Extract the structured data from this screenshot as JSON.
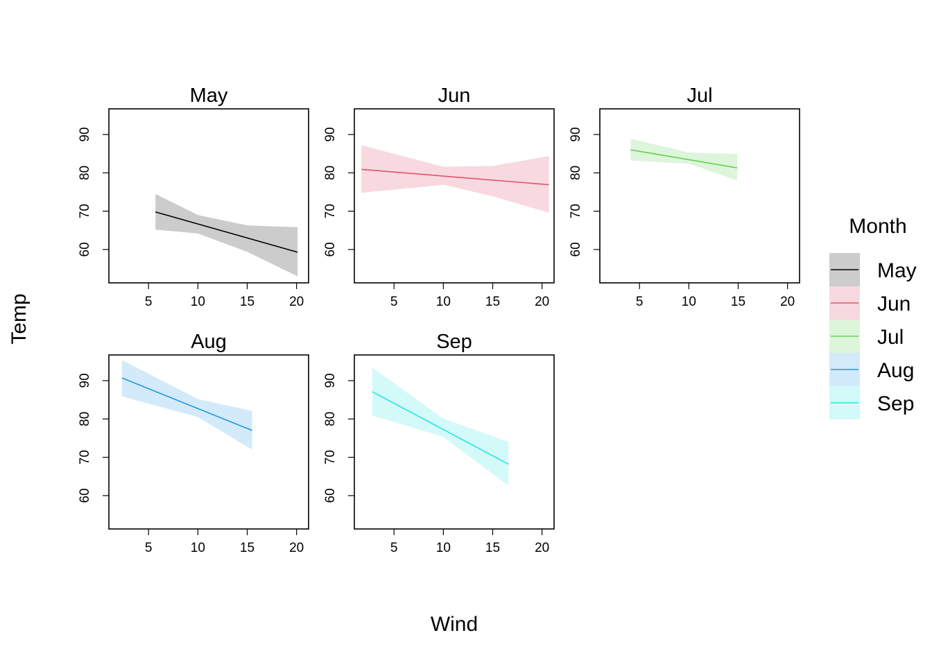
{
  "chart_data": {
    "type": "line",
    "xlabel": "Wind",
    "ylabel": "Temp",
    "xlim": [
      0.98,
      21.22
    ],
    "ylim": [
      51.3,
      96.7
    ],
    "x_ticks": [
      5,
      10,
      15,
      20
    ],
    "y_ticks": [
      60,
      70,
      80,
      90
    ],
    "x_tick_labels": [
      "5",
      "10",
      "15",
      "20"
    ],
    "y_tick_labels": [
      "60",
      "70",
      "80",
      "90"
    ],
    "legend": {
      "title": "Month",
      "placement": "right",
      "entries": [
        "May",
        "Jun",
        "Jul",
        "Aug",
        "Sep"
      ]
    },
    "panels": [
      {
        "title": "May",
        "color": "#000000",
        "band_color": "#CCCCCC",
        "line": {
          "x": [
            5.7,
            20.1
          ],
          "y": [
            69.8,
            59.3
          ]
        },
        "band": {
          "x": [
            5.7,
            10,
            15,
            20.1
          ],
          "lower": [
            65.2,
            64.2,
            59.4,
            53.0
          ],
          "upper": [
            74.5,
            69.0,
            66.3,
            65.8
          ]
        }
      },
      {
        "title": "Jun",
        "color": "#DF536B",
        "band_color": "#F7D9DF",
        "line": {
          "x": [
            1.7,
            20.7
          ],
          "y": [
            80.9,
            76.9
          ]
        },
        "band": {
          "x": [
            1.7,
            10,
            15,
            20.7
          ],
          "lower": [
            74.8,
            76.9,
            73.9,
            69.6
          ],
          "upper": [
            87.2,
            81.6,
            81.8,
            84.4
          ]
        }
      },
      {
        "title": "Jul",
        "color": "#61D04F",
        "band_color": "#DDF5DA",
        "line": {
          "x": [
            4.1,
            14.9
          ],
          "y": [
            86.0,
            81.3
          ]
        },
        "band": {
          "x": [
            4.1,
            10,
            14.9
          ],
          "lower": [
            83.2,
            82.4,
            78.0
          ],
          "upper": [
            88.9,
            85.3,
            84.9
          ]
        }
      },
      {
        "title": "Aug",
        "color": "#2297E6",
        "band_color": "#D3EAFA",
        "line": {
          "x": [
            2.3,
            15.5
          ],
          "y": [
            90.7,
            77.0
          ]
        },
        "band": {
          "x": [
            2.3,
            10,
            15.5
          ],
          "lower": [
            85.9,
            80.5,
            72.0
          ],
          "upper": [
            95.4,
            85.2,
            82.1
          ]
        }
      },
      {
        "title": "Sep",
        "color": "#28E2E5",
        "band_color": "#D4F9F9",
        "line": {
          "x": [
            2.8,
            16.6
          ],
          "y": [
            87.1,
            68.2
          ]
        },
        "band": {
          "x": [
            2.8,
            10,
            16.6
          ],
          "lower": [
            80.9,
            75.3,
            62.6
          ],
          "upper": [
            93.4,
            80.1,
            74.0
          ]
        }
      }
    ]
  }
}
